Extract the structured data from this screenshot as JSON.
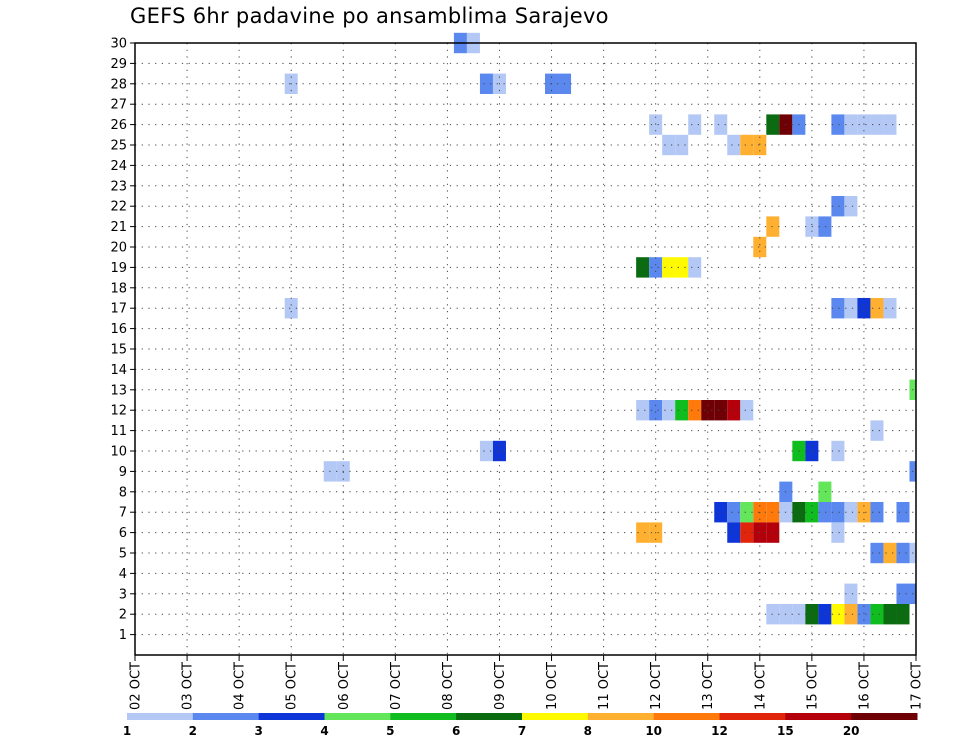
{
  "chart_data": {
    "type": "heatmap",
    "title": "GEFS 6hr padavine po ansamblima Sarajevo",
    "xlabel": "",
    "ylabel": "",
    "x_tick_labels": [
      "02 OCT",
      "03 OCT",
      "04 OCT",
      "05 OCT",
      "06 OCT",
      "07 OCT",
      "08 OCT",
      "09 OCT",
      "10 OCT",
      "11 OCT",
      "12 OCT",
      "13 OCT",
      "14 OCT",
      "15 OCT",
      "16 OCT",
      "17 OCT"
    ],
    "x_start": "02 OCT",
    "x_end": "17 OCT",
    "y_tick_labels": [
      "1",
      "2",
      "3",
      "4",
      "5",
      "6",
      "7",
      "8",
      "9",
      "10",
      "11",
      "12",
      "13",
      "14",
      "15",
      "16",
      "17",
      "18",
      "19",
      "20",
      "21",
      "22",
      "23",
      "24",
      "25",
      "26",
      "27",
      "28",
      "29",
      "30"
    ],
    "ylim": [
      0,
      30
    ],
    "grid": true,
    "legend": {
      "placement": "bottom",
      "bounds": [
        "1",
        "2",
        "3",
        "4",
        "5",
        "6",
        "7",
        "8",
        "10",
        "12",
        "15",
        "20"
      ],
      "colors": [
        "#b3c8f5",
        "#5a88ee",
        "#0e35d8",
        "#64e65a",
        "#0fbe1e",
        "#0a6b10",
        "#fffa00",
        "#ffb030",
        "#ff7a0a",
        "#e0250a",
        "#b4000a",
        "#6e0005"
      ]
    },
    "cells": [
      {
        "member": 30,
        "time": "08 OCT 06Z",
        "color": "#5a88ee"
      },
      {
        "member": 30,
        "time": "08 OCT 12Z",
        "color": "#b3c8f5"
      },
      {
        "member": 28,
        "time": "05 OCT 00Z",
        "color": "#b3c8f5"
      },
      {
        "member": 28,
        "time": "08 OCT 18Z",
        "color": "#5a88ee"
      },
      {
        "member": 28,
        "time": "09 OCT 00Z",
        "color": "#b3c8f5"
      },
      {
        "member": 28,
        "time": "10 OCT 00Z",
        "color": "#5a88ee"
      },
      {
        "member": 28,
        "time": "10 OCT 06Z",
        "color": "#5a88ee"
      },
      {
        "member": 26,
        "time": "12 OCT 00Z",
        "color": "#b3c8f5"
      },
      {
        "member": 26,
        "time": "12 OCT 18Z",
        "color": "#b3c8f5"
      },
      {
        "member": 26,
        "time": "13 OCT 06Z",
        "color": "#b3c8f5"
      },
      {
        "member": 26,
        "time": "14 OCT 06Z",
        "color": "#0a6b10"
      },
      {
        "member": 26,
        "time": "14 OCT 12Z",
        "color": "#6e0005"
      },
      {
        "member": 26,
        "time": "14 OCT 18Z",
        "color": "#5a88ee"
      },
      {
        "member": 26,
        "time": "15 OCT 12Z",
        "color": "#5a88ee"
      },
      {
        "member": 26,
        "time": "15 OCT 18Z",
        "color": "#b3c8f5"
      },
      {
        "member": 26,
        "time": "16 OCT 00Z",
        "color": "#b3c8f5"
      },
      {
        "member": 26,
        "time": "16 OCT 06Z",
        "color": "#b3c8f5"
      },
      {
        "member": 26,
        "time": "16 OCT 12Z",
        "color": "#b3c8f5"
      },
      {
        "member": 25,
        "time": "12 OCT 06Z",
        "color": "#b3c8f5"
      },
      {
        "member": 25,
        "time": "12 OCT 12Z",
        "color": "#b3c8f5"
      },
      {
        "member": 25,
        "time": "13 OCT 12Z",
        "color": "#b3c8f5"
      },
      {
        "member": 25,
        "time": "13 OCT 18Z",
        "color": "#ffb030"
      },
      {
        "member": 25,
        "time": "14 OCT 00Z",
        "color": "#ffb030"
      },
      {
        "member": 22,
        "time": "15 OCT 12Z",
        "color": "#5a88ee"
      },
      {
        "member": 22,
        "time": "15 OCT 18Z",
        "color": "#b3c8f5"
      },
      {
        "member": 21,
        "time": "14 OCT 06Z",
        "color": "#ffb030"
      },
      {
        "member": 21,
        "time": "15 OCT 00Z",
        "color": "#b3c8f5"
      },
      {
        "member": 21,
        "time": "15 OCT 06Z",
        "color": "#5a88ee"
      },
      {
        "member": 20,
        "time": "14 OCT 00Z",
        "color": "#ffb030"
      },
      {
        "member": 19,
        "time": "11 OCT 18Z",
        "color": "#0a6b10"
      },
      {
        "member": 19,
        "time": "12 OCT 00Z",
        "color": "#5a88ee"
      },
      {
        "member": 19,
        "time": "12 OCT 06Z",
        "color": "#fffa00"
      },
      {
        "member": 19,
        "time": "12 OCT 12Z",
        "color": "#fffa00"
      },
      {
        "member": 19,
        "time": "12 OCT 18Z",
        "color": "#b3c8f5"
      },
      {
        "member": 17,
        "time": "05 OCT 00Z",
        "color": "#b3c8f5"
      },
      {
        "member": 17,
        "time": "15 OCT 12Z",
        "color": "#5a88ee"
      },
      {
        "member": 17,
        "time": "15 OCT 18Z",
        "color": "#b3c8f5"
      },
      {
        "member": 17,
        "time": "16 OCT 00Z",
        "color": "#0e35d8"
      },
      {
        "member": 17,
        "time": "16 OCT 06Z",
        "color": "#ffb030"
      },
      {
        "member": 17,
        "time": "16 OCT 12Z",
        "color": "#b3c8f5"
      },
      {
        "member": 13,
        "time": "17 OCT 00Z",
        "color": "#64e65a"
      },
      {
        "member": 12,
        "time": "11 OCT 18Z",
        "color": "#b3c8f5"
      },
      {
        "member": 12,
        "time": "12 OCT 00Z",
        "color": "#5a88ee"
      },
      {
        "member": 12,
        "time": "12 OCT 06Z",
        "color": "#b3c8f5"
      },
      {
        "member": 12,
        "time": "12 OCT 12Z",
        "color": "#0fbe1e"
      },
      {
        "member": 12,
        "time": "12 OCT 18Z",
        "color": "#ff7a0a"
      },
      {
        "member": 12,
        "time": "13 OCT 00Z",
        "color": "#6e0005"
      },
      {
        "member": 12,
        "time": "13 OCT 06Z",
        "color": "#6e0005"
      },
      {
        "member": 12,
        "time": "13 OCT 12Z",
        "color": "#b4000a"
      },
      {
        "member": 12,
        "time": "13 OCT 18Z",
        "color": "#b3c8f5"
      },
      {
        "member": 11,
        "time": "16 OCT 06Z",
        "color": "#b3c8f5"
      },
      {
        "member": 10,
        "time": "08 OCT 18Z",
        "color": "#b3c8f5"
      },
      {
        "member": 10,
        "time": "09 OCT 00Z",
        "color": "#0e35d8"
      },
      {
        "member": 10,
        "time": "14 OCT 18Z",
        "color": "#0fbe1e"
      },
      {
        "member": 10,
        "time": "15 OCT 00Z",
        "color": "#0e35d8"
      },
      {
        "member": 10,
        "time": "15 OCT 12Z",
        "color": "#b3c8f5"
      },
      {
        "member": 9,
        "time": "05 OCT 18Z",
        "color": "#b3c8f5"
      },
      {
        "member": 9,
        "time": "06 OCT 00Z",
        "color": "#b3c8f5"
      },
      {
        "member": 9,
        "time": "17 OCT 00Z",
        "color": "#5a88ee"
      },
      {
        "member": 8,
        "time": "14 OCT 12Z",
        "color": "#5a88ee"
      },
      {
        "member": 8,
        "time": "15 OCT 06Z",
        "color": "#64e65a"
      },
      {
        "member": 7,
        "time": "13 OCT 06Z",
        "color": "#0e35d8"
      },
      {
        "member": 7,
        "time": "13 OCT 12Z",
        "color": "#5a88ee"
      },
      {
        "member": 7,
        "time": "13 OCT 18Z",
        "color": "#64e65a"
      },
      {
        "member": 7,
        "time": "14 OCT 00Z",
        "color": "#ff7a0a"
      },
      {
        "member": 7,
        "time": "14 OCT 06Z",
        "color": "#ff7a0a"
      },
      {
        "member": 7,
        "time": "14 OCT 12Z",
        "color": "#b3c8f5"
      },
      {
        "member": 7,
        "time": "14 OCT 18Z",
        "color": "#0a6b10"
      },
      {
        "member": 7,
        "time": "15 OCT 00Z",
        "color": "#0fbe1e"
      },
      {
        "member": 7,
        "time": "15 OCT 06Z",
        "color": "#5a88ee"
      },
      {
        "member": 7,
        "time": "15 OCT 12Z",
        "color": "#5a88ee"
      },
      {
        "member": 7,
        "time": "15 OCT 18Z",
        "color": "#b3c8f5"
      },
      {
        "member": 7,
        "time": "16 OCT 00Z",
        "color": "#ffb030"
      },
      {
        "member": 7,
        "time": "16 OCT 06Z",
        "color": "#5a88ee"
      },
      {
        "member": 7,
        "time": "16 OCT 18Z",
        "color": "#5a88ee"
      },
      {
        "member": 6,
        "time": "11 OCT 18Z",
        "color": "#ffb030"
      },
      {
        "member": 6,
        "time": "12 OCT 00Z",
        "color": "#ffb030"
      },
      {
        "member": 6,
        "time": "13 OCT 12Z",
        "color": "#0e35d8"
      },
      {
        "member": 6,
        "time": "13 OCT 18Z",
        "color": "#e0250a"
      },
      {
        "member": 6,
        "time": "14 OCT 00Z",
        "color": "#b4000a"
      },
      {
        "member": 6,
        "time": "14 OCT 06Z",
        "color": "#b4000a"
      },
      {
        "member": 6,
        "time": "15 OCT 12Z",
        "color": "#b3c8f5"
      },
      {
        "member": 5,
        "time": "16 OCT 06Z",
        "color": "#5a88ee"
      },
      {
        "member": 5,
        "time": "16 OCT 12Z",
        "color": "#ffb030"
      },
      {
        "member": 5,
        "time": "16 OCT 18Z",
        "color": "#5a88ee"
      },
      {
        "member": 5,
        "time": "17 OCT 00Z",
        "color": "#b3c8f5"
      },
      {
        "member": 3,
        "time": "15 OCT 18Z",
        "color": "#b3c8f5"
      },
      {
        "member": 3,
        "time": "16 OCT 18Z",
        "color": "#5a88ee"
      },
      {
        "member": 3,
        "time": "17 OCT 00Z",
        "color": "#5a88ee"
      },
      {
        "member": 2,
        "time": "14 OCT 06Z",
        "color": "#b3c8f5"
      },
      {
        "member": 2,
        "time": "14 OCT 12Z",
        "color": "#b3c8f5"
      },
      {
        "member": 2,
        "time": "14 OCT 18Z",
        "color": "#b3c8f5"
      },
      {
        "member": 2,
        "time": "15 OCT 00Z",
        "color": "#0a6b10"
      },
      {
        "member": 2,
        "time": "15 OCT 06Z",
        "color": "#0e35d8"
      },
      {
        "member": 2,
        "time": "15 OCT 12Z",
        "color": "#fffa00"
      },
      {
        "member": 2,
        "time": "15 OCT 18Z",
        "color": "#ffb030"
      },
      {
        "member": 2,
        "time": "16 OCT 00Z",
        "color": "#5a88ee"
      },
      {
        "member": 2,
        "time": "16 OCT 06Z",
        "color": "#0fbe1e"
      },
      {
        "member": 2,
        "time": "16 OCT 12Z",
        "color": "#0a6b10"
      },
      {
        "member": 2,
        "time": "16 OCT 18Z",
        "color": "#0a6b10"
      }
    ]
  }
}
